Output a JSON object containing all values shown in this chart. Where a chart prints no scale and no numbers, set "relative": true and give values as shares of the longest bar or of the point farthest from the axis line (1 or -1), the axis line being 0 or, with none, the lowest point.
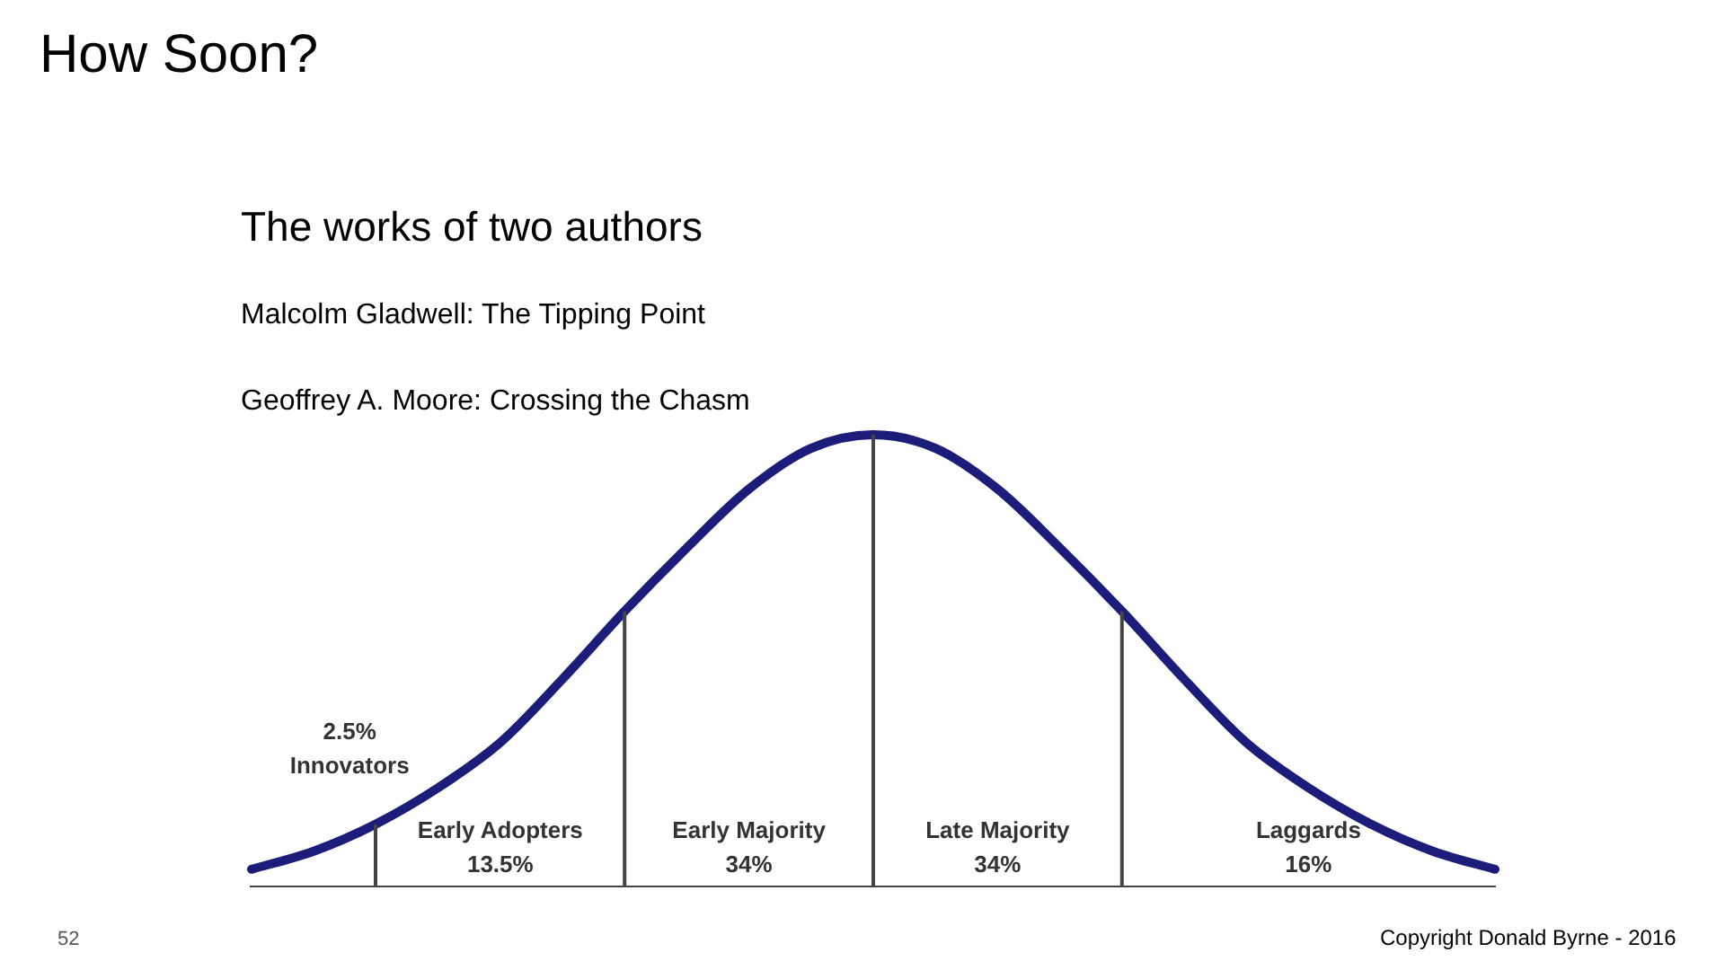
{
  "chart_data": {
    "type": "line",
    "title": "How Soon?",
    "subtitle": "The works of two authors",
    "relative": true,
    "annotations": [
      "Malcolm Gladwell: The Tipping Point",
      "Geoffrey A. Moore: Crossing the Chasm",
      "2.5%",
      "Innovators",
      "Early Adopters",
      "13.5%",
      "Early Majority",
      "34%",
      "Late Majority",
      "34%",
      "Laggards",
      "16%",
      "52",
      "Copyright Donald Byrne - 2016"
    ],
    "categories": [
      null,
      null,
      null,
      null,
      null,
      null,
      null,
      null,
      null,
      null,
      null,
      null,
      null,
      null,
      null,
      null,
      null,
      null,
      null,
      null,
      null
    ],
    "series": [
      {
        "color": "#1c1c7a",
        "values": [
          0.04,
          0.08,
          0.14,
          0.22,
          0.32,
          0.46,
          0.61,
          0.75,
          0.88,
          0.97,
          1,
          0.97,
          0.88,
          0.75,
          0.61,
          0.46,
          0.32,
          0.22,
          0.14,
          0.08,
          0.04
        ]
      }
    ],
    "grid": false,
    "legend": false,
    "marker": "none",
    "line_style": "solid"
  }
}
